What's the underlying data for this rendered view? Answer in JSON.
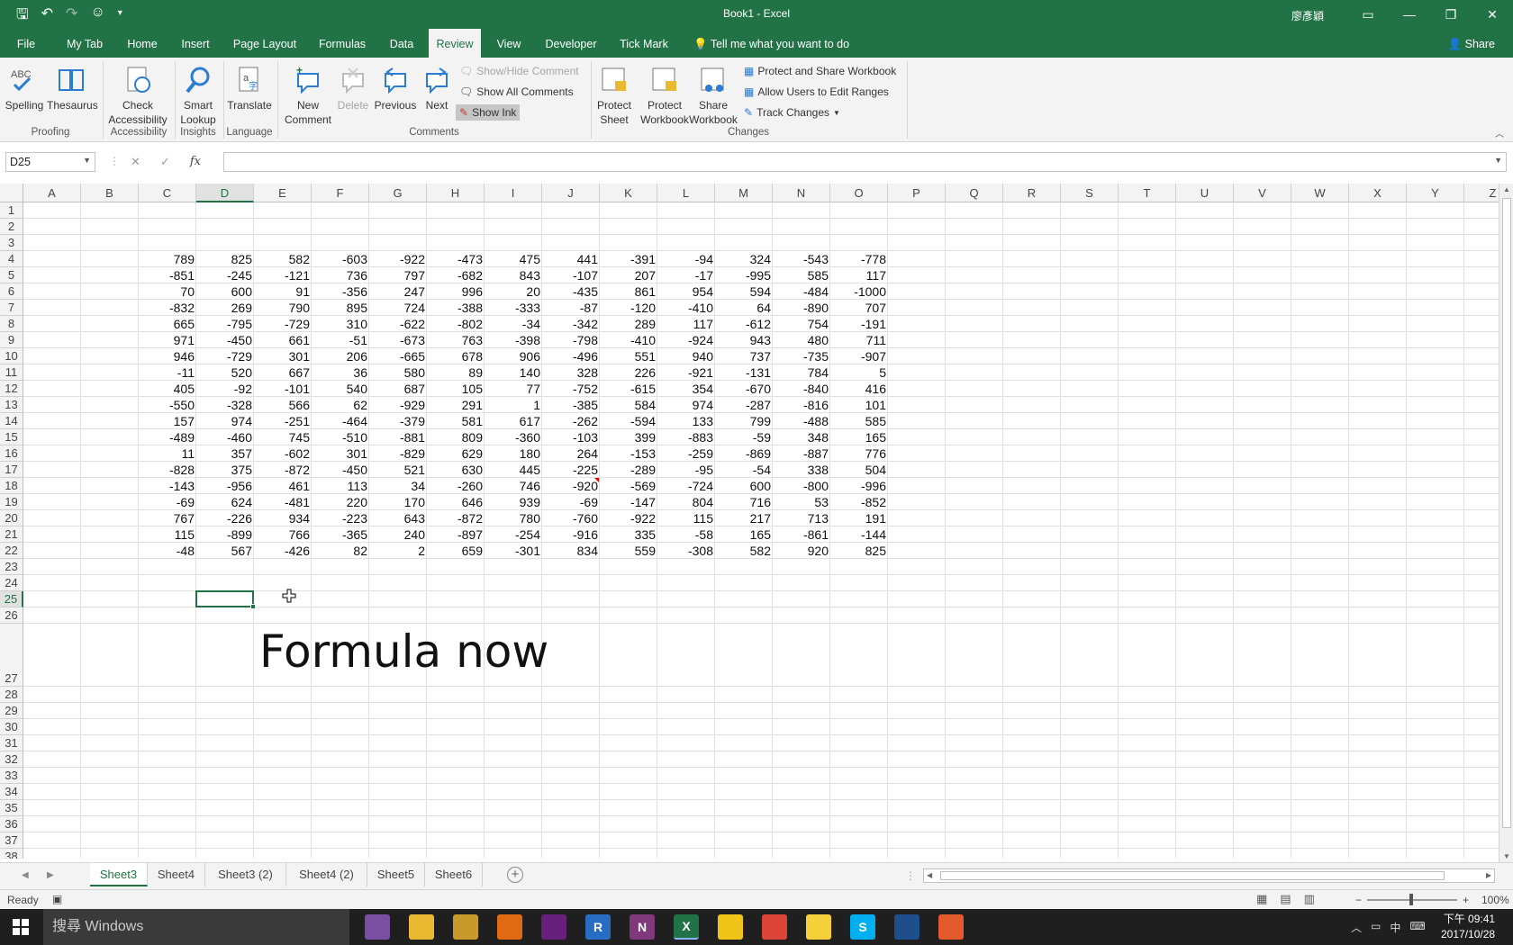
{
  "window": {
    "title": "Book1  -  Excel",
    "user": "廖彥穎"
  },
  "ribbon_tabs": [
    "File",
    "My Tab",
    "Home",
    "Insert",
    "Page Layout",
    "Formulas",
    "Data",
    "Review",
    "View",
    "Developer",
    "Tick Mark"
  ],
  "active_tab": "Review",
  "tell_me": "Tell me what you want to do",
  "share_label": "Share",
  "ribbon": {
    "proofing": {
      "label": "Proofing",
      "spelling": "Spelling",
      "spelling_icon_text": "ABC",
      "thesaurus": "Thesaurus"
    },
    "accessibility": {
      "label": "Accessibility",
      "check_line1": "Check",
      "check_line2": "Accessibility"
    },
    "insights": {
      "label": "Insights",
      "smart_line1": "Smart",
      "smart_line2": "Lookup"
    },
    "language": {
      "label": "Language",
      "translate": "Translate"
    },
    "comments": {
      "label": "Comments",
      "new_line1": "New",
      "new_line2": "Comment",
      "delete": "Delete",
      "previous": "Previous",
      "next": "Next",
      "show_hide": "Show/Hide Comment",
      "show_all": "Show All Comments",
      "show_ink": "Show Ink"
    },
    "changes": {
      "label": "Changes",
      "protect_sheet_line1": "Protect",
      "protect_sheet_line2": "Sheet",
      "protect_wb_line1": "Protect",
      "protect_wb_line2": "Workbook",
      "share_wb_line1": "Share",
      "share_wb_line2": "Workbook",
      "protect_share": "Protect and Share Workbook",
      "allow_users": "Allow Users to Edit Ranges",
      "track_changes": "Track Changes"
    }
  },
  "formula_bar": {
    "name_box": "D25",
    "fx": "fx",
    "cancel": "✕",
    "enter": "✓",
    "content": ""
  },
  "grid": {
    "columns": [
      "A",
      "B",
      "C",
      "D",
      "E",
      "F",
      "G",
      "H",
      "I",
      "J",
      "K",
      "L",
      "M",
      "N",
      "O",
      "P",
      "Q",
      "R",
      "S",
      "T",
      "U",
      "V",
      "W",
      "X",
      "Y",
      "Z"
    ],
    "selected_column": "D",
    "selected_row": 25,
    "data_start_row": 4,
    "data_start_col": "C",
    "values": [
      [
        789,
        825,
        582,
        -603,
        -922,
        -473,
        475,
        441,
        -391,
        -94,
        324,
        -543,
        -778
      ],
      [
        -851,
        -245,
        -121,
        736,
        797,
        -682,
        843,
        -107,
        207,
        -17,
        -995,
        585,
        117
      ],
      [
        70,
        600,
        91,
        -356,
        247,
        996,
        20,
        -435,
        861,
        954,
        594,
        -484,
        -1000
      ],
      [
        -832,
        269,
        790,
        895,
        724,
        -388,
        -333,
        -87,
        -120,
        -410,
        64,
        -890,
        707
      ],
      [
        665,
        -795,
        -729,
        310,
        -622,
        -802,
        -34,
        -342,
        289,
        117,
        -612,
        754,
        -191
      ],
      [
        971,
        -450,
        661,
        -51,
        -673,
        763,
        -398,
        -798,
        -410,
        -924,
        943,
        480,
        711
      ],
      [
        946,
        -729,
        301,
        206,
        -665,
        678,
        906,
        -496,
        551,
        940,
        737,
        -735,
        -907
      ],
      [
        -11,
        520,
        667,
        36,
        580,
        89,
        140,
        328,
        226,
        -921,
        -131,
        784,
        5
      ],
      [
        405,
        -92,
        -101,
        540,
        687,
        105,
        77,
        -752,
        -615,
        354,
        -670,
        -840,
        416
      ],
      [
        -550,
        -328,
        566,
        62,
        -929,
        291,
        1,
        -385,
        584,
        974,
        -287,
        -816,
        101
      ],
      [
        157,
        974,
        -251,
        -464,
        -379,
        581,
        617,
        -262,
        -594,
        133,
        799,
        -488,
        585
      ],
      [
        -489,
        -460,
        745,
        -510,
        -881,
        809,
        -360,
        -103,
        399,
        -883,
        -59,
        348,
        165
      ],
      [
        11,
        357,
        -602,
        301,
        -829,
        629,
        180,
        264,
        -153,
        -259,
        -869,
        -887,
        776
      ],
      [
        -828,
        375,
        -872,
        -450,
        521,
        630,
        445,
        -225,
        -289,
        -95,
        -54,
        338,
        504
      ],
      [
        -143,
        -956,
        461,
        113,
        34,
        -260,
        746,
        -920,
        -569,
        -724,
        600,
        -800,
        -996
      ],
      [
        -69,
        624,
        -481,
        220,
        170,
        646,
        939,
        -69,
        -147,
        804,
        716,
        53,
        -852
      ],
      [
        767,
        -226,
        934,
        -223,
        643,
        -872,
        780,
        -760,
        -922,
        115,
        217,
        713,
        191
      ],
      [
        115,
        -899,
        766,
        -365,
        240,
        -897,
        -254,
        -916,
        335,
        -58,
        165,
        -861,
        -144
      ],
      [
        -48,
        567,
        -426,
        82,
        2,
        659,
        -301,
        834,
        559,
        -308,
        582,
        920,
        825
      ]
    ],
    "overlay_text": "Formula now",
    "comment_cell": "J18"
  },
  "sheets": [
    "Sheet3",
    "Sheet4",
    "Sheet3 (2)",
    "Sheet4 (2)",
    "Sheet5",
    "Sheet6"
  ],
  "active_sheet": "Sheet3",
  "status": {
    "ready": "Ready",
    "zoom_percent": 100,
    "zoom": "100%",
    "zoom_minus": "−",
    "zoom_plus": "+"
  },
  "taskbar": {
    "search_placeholder": "搜尋 Windows",
    "time": "下午 09:41",
    "date": "2017/10/28",
    "ime": "中",
    "apps": [
      {
        "name": "app-1-icon",
        "label": "",
        "color": "#7a4ea0"
      },
      {
        "name": "file-explorer-icon",
        "label": "",
        "color": "#e8b931"
      },
      {
        "name": "app-3-icon",
        "label": "",
        "color": "#c79a2a"
      },
      {
        "name": "app-4-icon",
        "label": "",
        "color": "#e06a12"
      },
      {
        "name": "visual-studio-icon",
        "label": "",
        "color": "#68217a"
      },
      {
        "name": "r-icon",
        "label": "R",
        "color": "#276dc3"
      },
      {
        "name": "onenote-icon",
        "label": "N",
        "color": "#80397b"
      },
      {
        "name": "excel-icon",
        "label": "X",
        "color": "#217346"
      },
      {
        "name": "app-9-icon",
        "label": "",
        "color": "#f0c419"
      },
      {
        "name": "chrome-icon",
        "label": "",
        "color": "#db4437"
      },
      {
        "name": "sticky-notes-icon",
        "label": "",
        "color": "#f6d03b"
      },
      {
        "name": "skype-icon",
        "label": "S",
        "color": "#00aff0"
      },
      {
        "name": "app-13-icon",
        "label": "",
        "color": "#1e4f8c"
      },
      {
        "name": "app-14-icon",
        "label": "",
        "color": "#e35b2c"
      }
    ]
  },
  "colors": {
    "brand": "#217346",
    "ribbon_bg": "#f3f3f3",
    "grid_line": "#e0e0e0"
  }
}
